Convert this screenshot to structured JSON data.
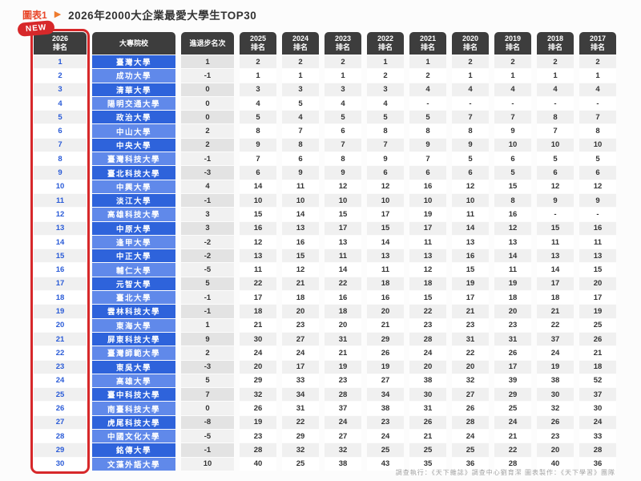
{
  "page": {
    "figure_label": "圖表1",
    "arrow_icon": "▶",
    "title": "2026年2000大企業最愛大學生TOP30",
    "new_badge": "NEW",
    "footer_credit": "調查執行：《天下雜誌》調查中心劉育潔 圖表製作：《天下學習》團隊"
  },
  "colors": {
    "accent_red": "#d7282a",
    "header_dark": "#3d3d3d",
    "row_blue_dark": "#2e63db",
    "row_blue_light": "#6089ea",
    "rank_text_blue": "#2a5bd7",
    "title_red": "#e8472a",
    "arrow_orange": "#ee7b2f"
  },
  "chart_data": {
    "type": "table",
    "title": "2026年2000大企業最愛大學生TOP30",
    "columns": [
      "2026排名",
      "大專院校",
      "進退步名次",
      "2025排名",
      "2024排名",
      "2023排名",
      "2022排名",
      "2021排名",
      "2020排名",
      "2019排名",
      "2018排名",
      "2017排名"
    ],
    "rows": [
      {
        "rank": "1",
        "university": "臺灣大學",
        "change": "1",
        "years": [
          "2",
          "2",
          "2",
          "1",
          "1",
          "2",
          "2",
          "2",
          "2"
        ]
      },
      {
        "rank": "2",
        "university": "成功大學",
        "change": "-1",
        "years": [
          "1",
          "1",
          "1",
          "2",
          "2",
          "1",
          "1",
          "1",
          "1"
        ]
      },
      {
        "rank": "3",
        "university": "清華大學",
        "change": "0",
        "years": [
          "3",
          "3",
          "3",
          "3",
          "4",
          "4",
          "4",
          "4",
          "4"
        ]
      },
      {
        "rank": "4",
        "university": "陽明交通大學",
        "change": "0",
        "years": [
          "4",
          "5",
          "4",
          "4",
          "-",
          "-",
          "-",
          "-",
          "-"
        ]
      },
      {
        "rank": "5",
        "university": "政治大學",
        "change": "0",
        "years": [
          "5",
          "4",
          "5",
          "5",
          "5",
          "7",
          "7",
          "8",
          "7"
        ]
      },
      {
        "rank": "6",
        "university": "中山大學",
        "change": "2",
        "years": [
          "8",
          "7",
          "6",
          "8",
          "8",
          "8",
          "9",
          "7",
          "8"
        ]
      },
      {
        "rank": "7",
        "university": "中央大學",
        "change": "2",
        "years": [
          "9",
          "8",
          "7",
          "7",
          "9",
          "9",
          "10",
          "10",
          "10"
        ]
      },
      {
        "rank": "8",
        "university": "臺灣科技大學",
        "change": "-1",
        "years": [
          "7",
          "6",
          "8",
          "9",
          "7",
          "5",
          "6",
          "5",
          "5"
        ]
      },
      {
        "rank": "9",
        "university": "臺北科技大學",
        "change": "-3",
        "years": [
          "6",
          "9",
          "9",
          "6",
          "6",
          "6",
          "5",
          "6",
          "6"
        ]
      },
      {
        "rank": "10",
        "university": "中興大學",
        "change": "4",
        "years": [
          "14",
          "11",
          "12",
          "12",
          "16",
          "12",
          "15",
          "12",
          "12"
        ]
      },
      {
        "rank": "11",
        "university": "淡江大學",
        "change": "-1",
        "years": [
          "10",
          "10",
          "10",
          "10",
          "10",
          "10",
          "8",
          "9",
          "9"
        ]
      },
      {
        "rank": "12",
        "university": "高雄科技大學",
        "change": "3",
        "years": [
          "15",
          "14",
          "15",
          "17",
          "19",
          "11",
          "16",
          "-",
          "-"
        ]
      },
      {
        "rank": "13",
        "university": "中原大學",
        "change": "3",
        "years": [
          "16",
          "13",
          "17",
          "15",
          "17",
          "14",
          "12",
          "15",
          "16"
        ]
      },
      {
        "rank": "14",
        "university": "逢甲大學",
        "change": "-2",
        "years": [
          "12",
          "16",
          "13",
          "14",
          "11",
          "13",
          "13",
          "11",
          "11"
        ]
      },
      {
        "rank": "15",
        "university": "中正大學",
        "change": "-2",
        "years": [
          "13",
          "15",
          "11",
          "13",
          "13",
          "16",
          "14",
          "13",
          "13"
        ]
      },
      {
        "rank": "16",
        "university": "輔仁大學",
        "change": "-5",
        "years": [
          "11",
          "12",
          "14",
          "11",
          "12",
          "15",
          "11",
          "14",
          "15"
        ]
      },
      {
        "rank": "17",
        "university": "元智大學",
        "change": "5",
        "years": [
          "22",
          "21",
          "22",
          "18",
          "18",
          "19",
          "19",
          "17",
          "20"
        ]
      },
      {
        "rank": "18",
        "university": "臺北大學",
        "change": "-1",
        "years": [
          "17",
          "18",
          "16",
          "16",
          "15",
          "17",
          "18",
          "18",
          "17"
        ]
      },
      {
        "rank": "19",
        "university": "雲林科技大學",
        "change": "-1",
        "years": [
          "18",
          "20",
          "18",
          "20",
          "22",
          "21",
          "20",
          "21",
          "19"
        ]
      },
      {
        "rank": "20",
        "university": "東海大學",
        "change": "1",
        "years": [
          "21",
          "23",
          "20",
          "21",
          "23",
          "23",
          "23",
          "22",
          "25"
        ]
      },
      {
        "rank": "21",
        "university": "屏東科技大學",
        "change": "9",
        "years": [
          "30",
          "27",
          "31",
          "29",
          "28",
          "31",
          "31",
          "37",
          "26"
        ]
      },
      {
        "rank": "22",
        "university": "臺灣師範大學",
        "change": "2",
        "years": [
          "24",
          "24",
          "21",
          "26",
          "24",
          "22",
          "26",
          "24",
          "21"
        ]
      },
      {
        "rank": "23",
        "university": "東吳大學",
        "change": "-3",
        "years": [
          "20",
          "17",
          "19",
          "19",
          "20",
          "20",
          "17",
          "19",
          "18"
        ]
      },
      {
        "rank": "24",
        "university": "高雄大學",
        "change": "5",
        "years": [
          "29",
          "33",
          "23",
          "27",
          "38",
          "32",
          "39",
          "38",
          "52"
        ]
      },
      {
        "rank": "25",
        "university": "臺中科技大學",
        "change": "7",
        "years": [
          "32",
          "34",
          "28",
          "34",
          "30",
          "27",
          "29",
          "30",
          "37"
        ]
      },
      {
        "rank": "26",
        "university": "南臺科技大學",
        "change": "0",
        "years": [
          "26",
          "31",
          "37",
          "38",
          "31",
          "26",
          "25",
          "32",
          "30"
        ]
      },
      {
        "rank": "27",
        "university": "虎尾科技大學",
        "change": "-8",
        "years": [
          "19",
          "22",
          "24",
          "23",
          "26",
          "28",
          "24",
          "26",
          "24"
        ]
      },
      {
        "rank": "28",
        "university": "中國文化大學",
        "change": "-5",
        "years": [
          "23",
          "29",
          "27",
          "24",
          "21",
          "24",
          "21",
          "23",
          "33"
        ]
      },
      {
        "rank": "29",
        "university": "銘傳大學",
        "change": "-1",
        "years": [
          "28",
          "32",
          "32",
          "25",
          "25",
          "25",
          "22",
          "20",
          "28"
        ]
      },
      {
        "rank": "30",
        "university": "文藻外語大學",
        "change": "10",
        "years": [
          "40",
          "25",
          "38",
          "43",
          "35",
          "36",
          "28",
          "40",
          "36"
        ]
      }
    ]
  }
}
